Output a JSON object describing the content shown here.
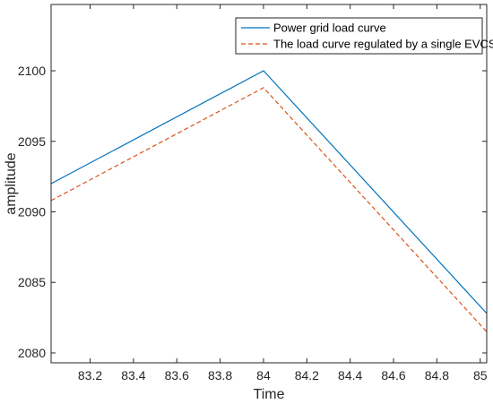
{
  "chart_data": {
    "type": "line",
    "xlabel": "Time",
    "ylabel": "amplitude",
    "xlim": [
      83.02,
      85.03
    ],
    "ylim": [
      2079.3,
      2104.7
    ],
    "xticks": [
      83.2,
      83.4,
      83.6,
      83.8,
      84,
      84.2,
      84.4,
      84.6,
      84.8,
      85
    ],
    "xtick_labels": [
      "83.2",
      "83.4",
      "83.6",
      "83.8",
      "84",
      "84.2",
      "84.4",
      "84.6",
      "84.8",
      "85"
    ],
    "yticks": [
      2080,
      2085,
      2090,
      2095,
      2100
    ],
    "ytick_labels": [
      "2080",
      "2085",
      "2090",
      "2095",
      "2100"
    ],
    "grid": false,
    "legend_position": "top-right",
    "series": [
      {
        "name": "Power grid load curve",
        "color": "#0072BD",
        "style": "solid",
        "x": [
          83.02,
          84.0,
          85.03
        ],
        "y": [
          2092.0,
          2100.0,
          2082.8
        ]
      },
      {
        "name": "The load curve regulated by a single EVCS",
        "color": "#D95319",
        "style": "dashed",
        "x": [
          83.02,
          84.0,
          85.03
        ],
        "y": [
          2090.8,
          2098.8,
          2081.5
        ]
      }
    ]
  }
}
